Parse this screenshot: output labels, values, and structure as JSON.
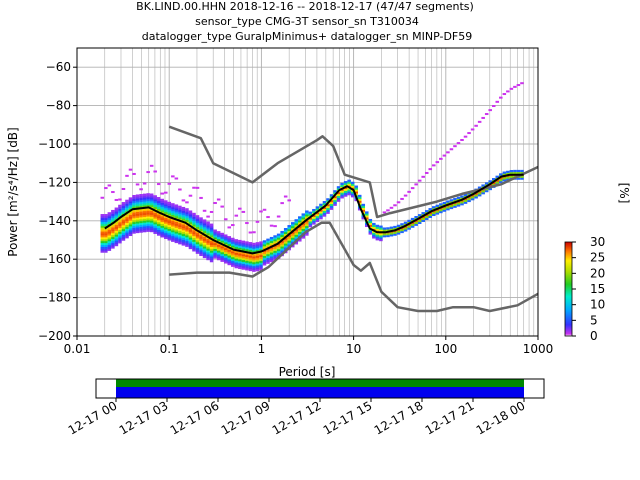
{
  "title": {
    "line1": "BK.LIND.00.HHN   2018-12-16 -- 2018-12-17  (47/47 segments)",
    "line2": "sensor_type CMG-3T sensor_sn T310034",
    "line3": "datalogger_type GuralpMinimus+ datalogger_sn MINP-DF59"
  },
  "colors": {
    "nlnm_nhnm": "#666666",
    "mean_curve": "#000000",
    "availability_data": "#0000ee",
    "availability_gaps": "#008800"
  },
  "chart_data": [
    {
      "type": "heatmap",
      "title": "",
      "xlabel": "Period [s]",
      "ylabel": "Power [m²/s⁴/Hz] [dB]",
      "xscale": "log",
      "xlim": [
        0.01,
        1000
      ],
      "ylim": [
        -200,
        -50
      ],
      "x_ticks": [
        "0.01",
        "0.1",
        "1",
        "10",
        "100",
        "1000"
      ],
      "y_ticks": [
        "−60",
        "−80",
        "−100",
        "−120",
        "−140",
        "−160",
        "−180",
        "−200"
      ],
      "grid": true,
      "colorbar": {
        "label": "[%]",
        "range": [
          0,
          30
        ],
        "ticks": [
          "0",
          "5",
          "10",
          "15",
          "20",
          "25",
          "30"
        ]
      },
      "series": [
        {
          "name": "",
          "x": [
            0.1,
            0.22,
            0.3,
            0.8,
            1.5,
            4.0,
            4.6,
            6.0,
            8.0,
            15.0,
            18.0,
            25.0,
            80.0,
            150.0,
            400.0,
            1000.0
          ],
          "y": [
            -91,
            -97,
            -110,
            -120,
            -110,
            -98,
            -96,
            -101,
            -116,
            -120,
            -138,
            -136,
            -130,
            -126,
            -121,
            -112
          ]
        },
        {
          "name": "",
          "x": [
            0.1,
            0.2,
            0.45,
            0.8,
            1.2,
            3.0,
            4.5,
            5.5,
            10.0,
            12.0,
            15.0,
            20.0,
            30.0,
            50.0,
            80.0,
            120.0,
            200.0,
            300.0,
            600.0,
            1000.0
          ],
          "y": [
            -168,
            -167,
            -167,
            -169,
            -164,
            -146,
            -141,
            -141,
            -163,
            -166,
            -162,
            -177,
            -185,
            -187,
            -187,
            -185,
            -185,
            -187,
            -184,
            -178
          ]
        },
        {
          "name": "",
          "x": [
            0.02,
            0.025,
            0.03,
            0.04,
            0.06,
            0.08,
            0.1,
            0.15,
            0.2,
            0.3,
            0.5,
            0.8,
            1.0,
            1.5,
            2.0,
            3.0,
            5.0,
            7.0,
            8.5,
            10.0,
            12.0,
            15.0,
            18.0,
            22.0,
            28.0,
            35.0,
            50.0,
            70.0,
            100.0,
            150.0,
            200.0,
            300.0,
            400.0,
            500.0,
            700.0
          ],
          "y": [
            -144,
            -141,
            -138,
            -134,
            -133,
            -136,
            -138,
            -141,
            -145,
            -150,
            -155,
            -157,
            -156,
            -152,
            -147,
            -140,
            -132,
            -124,
            -122,
            -124,
            -134,
            -144,
            -146,
            -146,
            -145,
            -143,
            -139,
            -135,
            -132,
            -129,
            -126,
            -121,
            -117,
            -116,
            -116
          ]
        }
      ]
    },
    {
      "type": "table",
      "title": "",
      "x_ticks": [
        "12-17 00",
        "12-17 03",
        "12-17 06",
        "12-17 09",
        "12-17 12",
        "12-17 15",
        "12-17 18",
        "12-17 21",
        "12-18 00"
      ],
      "coverage": {
        "segments": 47,
        "start": "12-17 00",
        "end": "12-18 00"
      }
    }
  ]
}
